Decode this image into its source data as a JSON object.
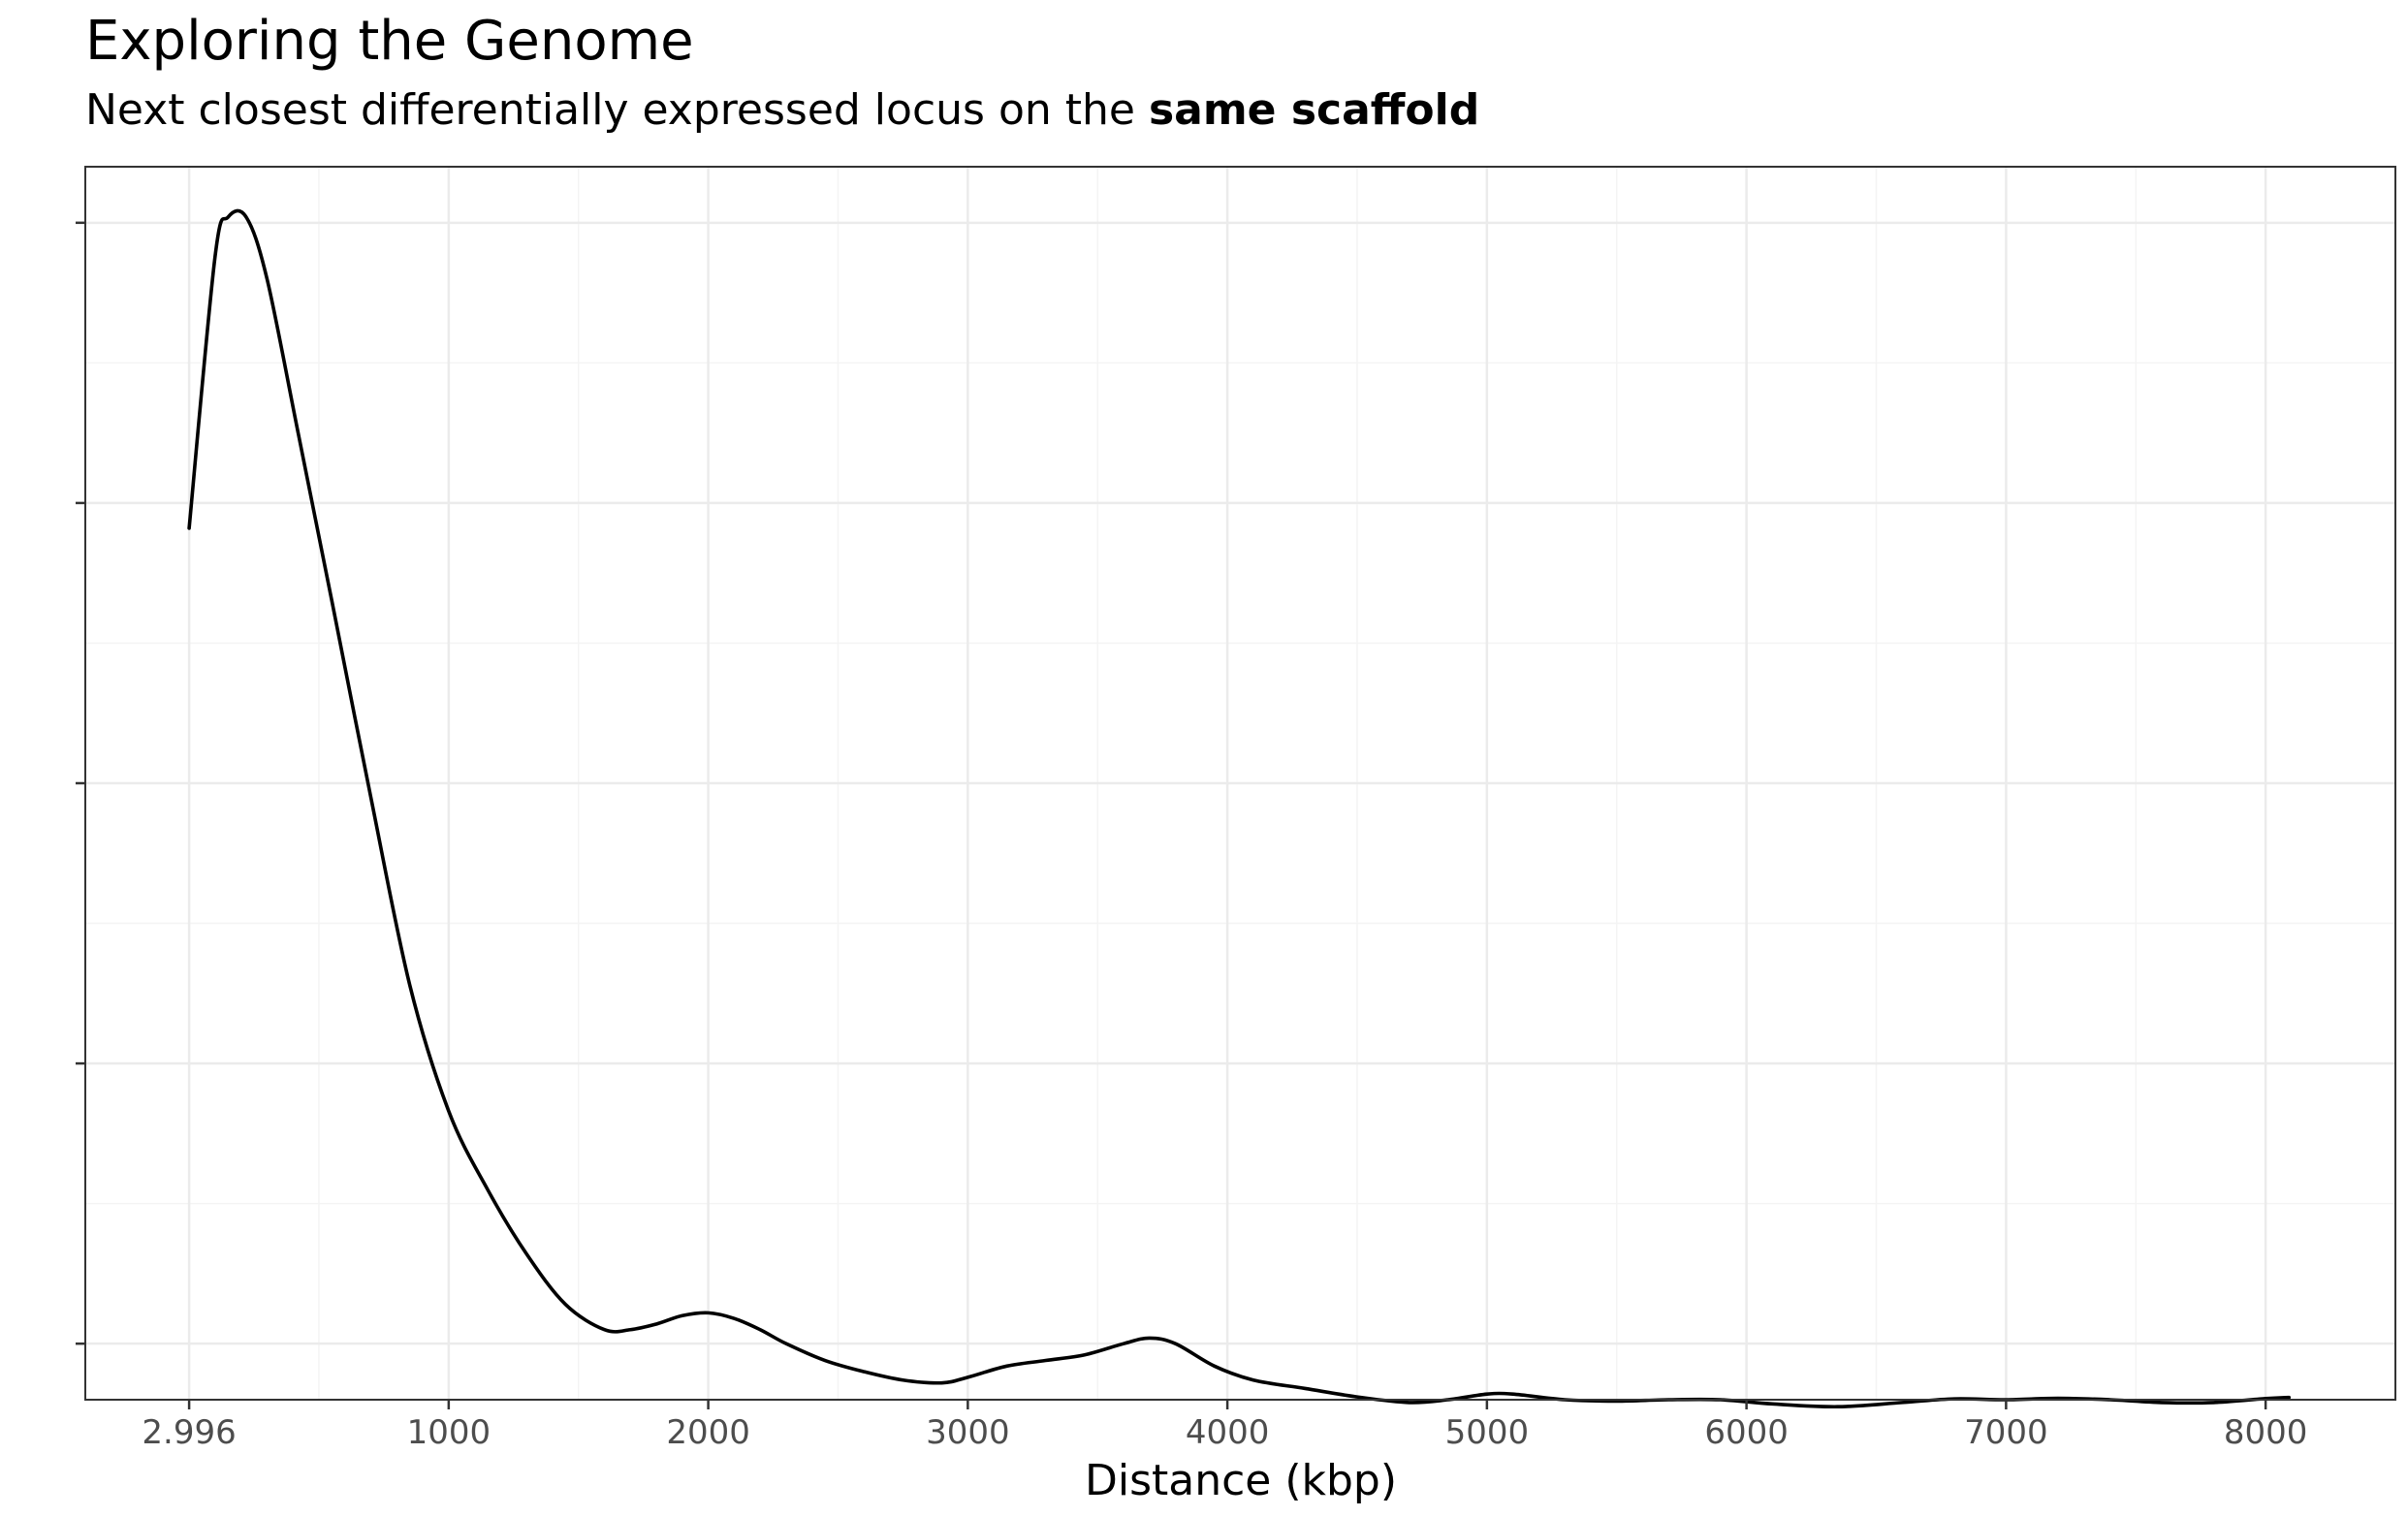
{
  "chart_data": {
    "type": "line",
    "title": "Exploring the Genome",
    "subtitle_prefix": "Next closest differentially expressed locus on the ",
    "subtitle_bold": "same scaffold",
    "xlabel": "Distance (kbp)",
    "ylabel": "",
    "xlim": [
      -400,
      8500
    ],
    "ylim": [
      -0.2,
      4.2
    ],
    "x_tick_labels": [
      "2.996",
      "1000",
      "2000",
      "3000",
      "4000",
      "5000",
      "6000",
      "7000",
      "8000"
    ],
    "x_tick_values": [
      0,
      1000,
      2000,
      3000,
      4000,
      5000,
      6000,
      7000,
      8000
    ],
    "y_tick_values": [
      0,
      1,
      2,
      3,
      4
    ],
    "y_tick_labels": [
      "",
      "",
      "",
      "",
      ""
    ],
    "grid": true,
    "line_color": "#000000",
    "series": [
      {
        "x": [
          0,
          100,
          150,
          220,
          300,
          420,
          550,
          700,
          850,
          1000,
          1150,
          1300,
          1450,
          1600,
          1700,
          1800,
          1900,
          2000,
          2100,
          2200,
          2300,
          2450,
          2600,
          2750,
          2900,
          3000,
          3150,
          3300,
          3450,
          3600,
          3700,
          3800,
          3950,
          4100,
          4300,
          4500,
          4700,
          4850,
          5000,
          5100,
          5300,
          5500,
          5700,
          5900,
          6100,
          6350,
          6600,
          6800,
          7000,
          7200,
          7400,
          7600,
          7800,
          8000,
          8090
        ],
        "y": [
          2.91,
          3.88,
          4.02,
          4.02,
          3.8,
          3.25,
          2.65,
          1.95,
          1.28,
          0.83,
          0.55,
          0.32,
          0.14,
          0.05,
          0.05,
          0.07,
          0.1,
          0.11,
          0.09,
          0.05,
          0.0,
          -0.06,
          -0.1,
          -0.13,
          -0.14,
          -0.12,
          -0.08,
          -0.06,
          -0.04,
          0.0,
          0.02,
          0.0,
          -0.08,
          -0.13,
          -0.16,
          -0.19,
          -0.21,
          -0.2,
          -0.18,
          -0.18,
          -0.2,
          -0.205,
          -0.2,
          -0.2,
          -0.215,
          -0.225,
          -0.21,
          -0.197,
          -0.2,
          -0.195,
          -0.2,
          -0.21,
          -0.21,
          -0.196,
          -0.192
        ]
      }
    ]
  }
}
